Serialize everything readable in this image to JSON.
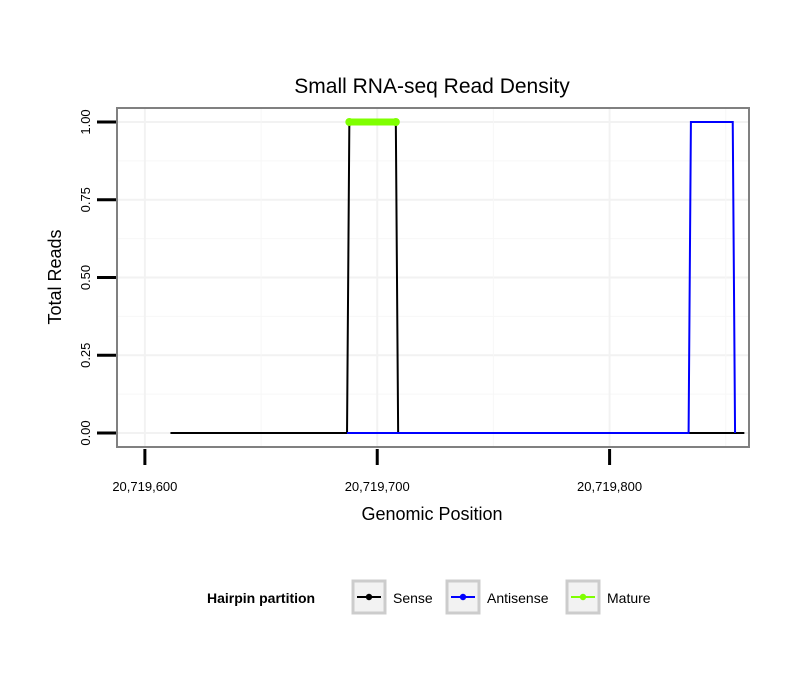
{
  "chart_data": {
    "type": "line",
    "title": "Small RNA-seq Read Density",
    "xlabel": "Genomic Position",
    "ylabel": "Total Reads",
    "xlim": [
      20719588,
      20719860
    ],
    "ylim": [
      -0.045,
      1.045
    ],
    "x_ticks": [
      20719600,
      20719700,
      20719800
    ],
    "x_tick_labels": [
      "20,719,600",
      "20,719,700",
      "20,719,800"
    ],
    "y_ticks": [
      0,
      0.25,
      0.5,
      0.75,
      1.0
    ],
    "y_tick_labels": [
      "0.00",
      "0.25",
      "0.50",
      "0.75",
      "1.00"
    ],
    "grid": true,
    "legend": {
      "position": "bottom",
      "title": "Hairpin partition",
      "entries": [
        {
          "label": "Sense",
          "color": "#000000"
        },
        {
          "label": "Antisense",
          "color": "#0000ff"
        },
        {
          "label": "Mature",
          "color": "#7fff00"
        }
      ]
    },
    "series": [
      {
        "name": "Sense",
        "color": "#000000",
        "x": [
          20719611,
          20719687,
          20719688,
          20719708,
          20719709,
          20719858
        ],
        "y": [
          0,
          0,
          1,
          1,
          0,
          0
        ]
      },
      {
        "name": "Antisense",
        "color": "#0000ff",
        "x": [
          20719687,
          20719709,
          20719834,
          20719835,
          20719853,
          20719854
        ],
        "y": [
          0,
          0,
          0,
          1,
          1,
          0
        ]
      },
      {
        "name": "Mature",
        "color": "#7fff00",
        "x": [
          20719688,
          20719708
        ],
        "y": [
          1,
          1
        ]
      }
    ]
  }
}
